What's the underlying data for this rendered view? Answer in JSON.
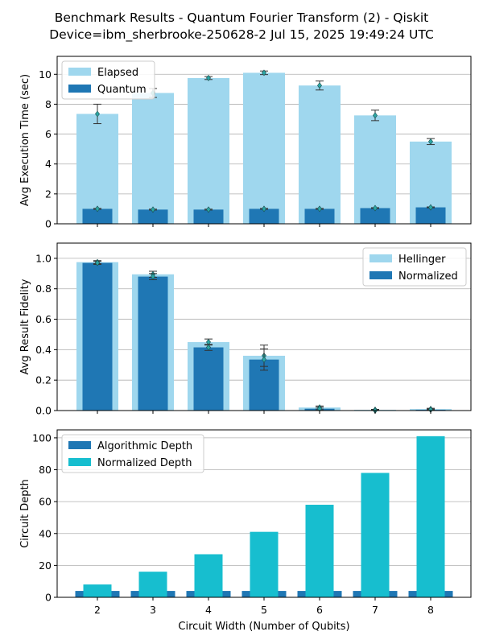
{
  "title": "Benchmark Results - Quantum Fourier Transform (2) - Qiskit",
  "subtitle": "Device=ibm_sherbrooke-250628-2  Jul 15, 2025 19:49:24 UTC",
  "colors": {
    "light_blue": "#9fd7ee",
    "dark_blue": "#1f77b4",
    "cyan": "#17becf",
    "marker": "#2ca6a4",
    "grid": "#b0b0b0"
  },
  "chart_data": [
    {
      "type": "bar",
      "ylabel": "Avg Execution Time (sec)",
      "xlabel": "",
      "ylim": [
        0,
        11.2
      ],
      "yticks": [
        0,
        2,
        4,
        6,
        8,
        10
      ],
      "grid": true,
      "legend": "top-left",
      "categories": [
        "2",
        "3",
        "4",
        "5",
        "6",
        "7",
        "8"
      ],
      "series": [
        {
          "name": "Elapsed",
          "values": [
            7.35,
            8.75,
            9.75,
            10.1,
            9.25,
            7.25,
            5.5
          ],
          "errors": [
            0.65,
            0.3,
            0.1,
            0.12,
            0.3,
            0.35,
            0.2
          ]
        },
        {
          "name": "Quantum",
          "values": [
            1.0,
            0.95,
            0.95,
            1.0,
            1.0,
            1.05,
            1.1
          ],
          "errors": [
            0.03,
            0.03,
            0.03,
            0.03,
            0.03,
            0.03,
            0.03
          ]
        }
      ]
    },
    {
      "type": "bar",
      "ylabel": "Avg Result Fidelity",
      "xlabel": "",
      "ylim": [
        0,
        1.1
      ],
      "yticks": [
        0.0,
        0.2,
        0.4,
        0.6,
        0.8,
        1.0
      ],
      "grid": true,
      "legend": "top-right",
      "categories": [
        "2",
        "3",
        "4",
        "5",
        "6",
        "7",
        "8"
      ],
      "series": [
        {
          "name": "Hellinger",
          "values": [
            0.975,
            0.895,
            0.45,
            0.36,
            0.02,
            0.005,
            0.01
          ],
          "errors": [
            0.01,
            0.02,
            0.02,
            0.07,
            0.01,
            0.003,
            0.005
          ]
        },
        {
          "name": "Normalized",
          "values": [
            0.97,
            0.88,
            0.415,
            0.335,
            0.012,
            0.0,
            0.005
          ],
          "errors": [
            0.01,
            0.02,
            0.02,
            0.07,
            0.01,
            0.003,
            0.005
          ]
        }
      ]
    },
    {
      "type": "bar",
      "ylabel": "Circuit Depth",
      "xlabel": "Circuit Width (Number of Qubits)",
      "ylim": [
        0,
        105
      ],
      "yticks": [
        0,
        20,
        40,
        60,
        80,
        100
      ],
      "grid": true,
      "legend": "top-left",
      "categories": [
        "2",
        "3",
        "4",
        "5",
        "6",
        "7",
        "8"
      ],
      "series": [
        {
          "name": "Algorithmic Depth",
          "values": [
            4,
            4,
            4,
            4,
            4,
            4,
            4
          ]
        },
        {
          "name": "Normalized Depth",
          "values": [
            8,
            16,
            27,
            41,
            58,
            78,
            101
          ]
        }
      ]
    }
  ]
}
